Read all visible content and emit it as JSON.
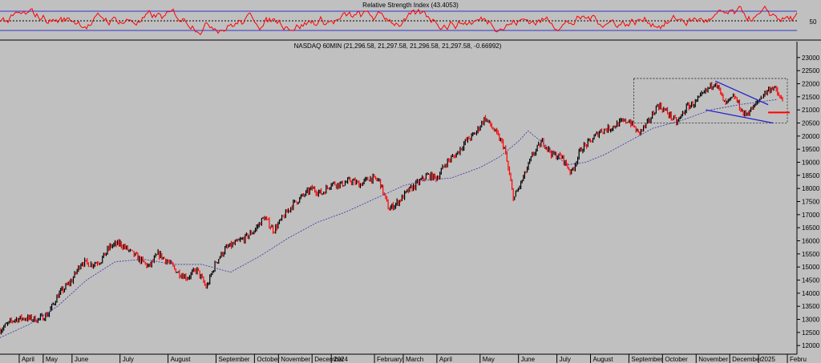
{
  "rsi_panel": {
    "title": "Relative Strength Index (43.4053)",
    "axis_label": "50",
    "upper_level": 70,
    "lower_level": 30,
    "mid_level": 50
  },
  "price_panel": {
    "title": "NASDAQ 60MIN (21,296.58, 21,297.58, 21,296.58, 21,297.58, -0.66992)"
  },
  "colors": {
    "background": "#c0c0c0",
    "rsi_line": "#ff0000",
    "rsi_levels": "#3333cc",
    "price_up": "#000000",
    "price_down": "#ff0000",
    "moving_average": "#3333aa",
    "trendlines": "#2222cc",
    "support_line": "#ff0000",
    "box": "#222222"
  },
  "chart_data": {
    "type": "line",
    "title": "NASDAQ 60MIN (21,296.58, 21,297.58, 21,296.58, 21,297.58, -0.66992)",
    "y_ticks": [
      12000,
      12500,
      13000,
      13500,
      14000,
      14500,
      15000,
      15500,
      16000,
      16500,
      17000,
      17500,
      18000,
      18500,
      19000,
      19500,
      20000,
      20500,
      21000,
      21500,
      22000,
      22500,
      23000
    ],
    "ylim": [
      11700,
      23300
    ],
    "x_tick_labels": [
      "April",
      "May",
      "June",
      "July",
      "August",
      "September",
      "October",
      "November",
      "December",
      "2024",
      "February",
      "March",
      "April",
      "May",
      "June",
      "July",
      "August",
      "September",
      "October",
      "November",
      "December",
      "2025",
      "Febru"
    ],
    "x_tick_positions": [
      0.04,
      0.09,
      0.15,
      0.25,
      0.35,
      0.45,
      0.53,
      0.58,
      0.65,
      0.69,
      0.78,
      0.84,
      0.91,
      1.0,
      1.08,
      1.16,
      1.23,
      1.31,
      1.38,
      1.45,
      1.52,
      1.58,
      1.64
    ],
    "x_range": [
      0.0,
      1.66
    ],
    "series": [
      {
        "kind": "price",
        "x": [
          0.0,
          0.03,
          0.05,
          0.08,
          0.1,
          0.12,
          0.15,
          0.17,
          0.19,
          0.21,
          0.23,
          0.25,
          0.27,
          0.29,
          0.31,
          0.33,
          0.35,
          0.37,
          0.39,
          0.41,
          0.43,
          0.45,
          0.47,
          0.49,
          0.51,
          0.53,
          0.55,
          0.57,
          0.59,
          0.61,
          0.63,
          0.65,
          0.67,
          0.69,
          0.71,
          0.73,
          0.75,
          0.77,
          0.79,
          0.81,
          0.83,
          0.85,
          0.87,
          0.89,
          0.91,
          0.93,
          0.95,
          0.97,
          0.99,
          1.01,
          1.03,
          1.05,
          1.07,
          1.09,
          1.11,
          1.13,
          1.15,
          1.17,
          1.19,
          1.21,
          1.23,
          1.25,
          1.27,
          1.29,
          1.31,
          1.33,
          1.35,
          1.37,
          1.39,
          1.41,
          1.43,
          1.45,
          1.47,
          1.49,
          1.51,
          1.53,
          1.55,
          1.57,
          1.59,
          1.61,
          1.63
        ],
        "y": [
          12600,
          13000,
          13050,
          13000,
          13200,
          13900,
          14500,
          15200,
          15100,
          15250,
          15800,
          15900,
          15600,
          15300,
          15000,
          15500,
          15200,
          14800,
          14600,
          14900,
          14200,
          15200,
          15700,
          15900,
          16100,
          16400,
          16900,
          16400,
          16900,
          17400,
          17700,
          18000,
          17800,
          18200,
          18150,
          18300,
          18150,
          18400,
          18300,
          17200,
          17500,
          17900,
          18200,
          18500,
          18400,
          19000,
          19300,
          19800,
          20100,
          20700,
          20200,
          19600,
          17600,
          18400,
          19300,
          19800,
          19300,
          19200,
          18600,
          19500,
          19800,
          20200,
          20300,
          20500,
          20600,
          20100,
          20500,
          21200,
          20900,
          20500,
          21100,
          21300,
          21700,
          22100,
          21200,
          21500,
          20800,
          21100,
          21600,
          21900,
          21300
        ]
      },
      {
        "kind": "moving_average",
        "x": [
          0.0,
          0.06,
          0.12,
          0.18,
          0.24,
          0.3,
          0.36,
          0.42,
          0.48,
          0.54,
          0.6,
          0.66,
          0.72,
          0.78,
          0.84,
          0.88,
          0.94,
          1.0,
          1.04,
          1.08,
          1.1,
          1.14,
          1.18,
          1.22,
          1.26,
          1.3,
          1.36,
          1.42,
          1.48,
          1.54,
          1.58,
          1.62
        ],
        "y": [
          12300,
          12800,
          13500,
          14500,
          15200,
          15300,
          15100,
          15100,
          14800,
          15400,
          16100,
          16700,
          17100,
          17600,
          18100,
          18300,
          18400,
          18800,
          19200,
          19800,
          20200,
          19600,
          18900,
          19000,
          19300,
          19700,
          20300,
          20600,
          21000,
          21200,
          21300,
          21400
        ]
      }
    ],
    "rsi": {
      "ylim": [
        10,
        90
      ],
      "levels": [
        30,
        50,
        70
      ]
    },
    "annotations": {
      "dotted_box": {
        "x": [
          1.32,
          1.64
        ],
        "y": [
          20500,
          22200
        ]
      },
      "upper_trendline": {
        "x": [
          1.49,
          1.6
        ],
        "y": [
          22100,
          21200
        ]
      },
      "lower_trendline": {
        "x": [
          1.47,
          1.61
        ],
        "y": [
          21000,
          20500
        ]
      },
      "support_line": {
        "x": [
          1.6,
          1.645
        ],
        "y": [
          20900,
          20900
        ]
      }
    }
  }
}
